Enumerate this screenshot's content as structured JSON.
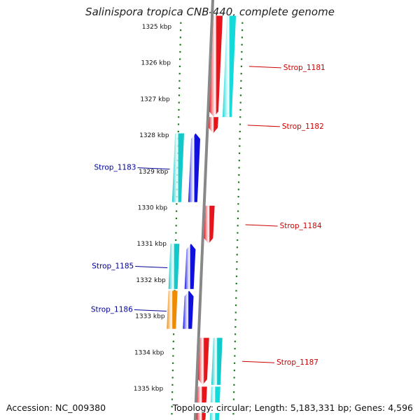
{
  "title": "Salinispora tropica CNB-440, complete genome",
  "accession_text": "Accession: NC_009380",
  "summary_text": "Topology: circular; Length: 5,183,331 bp; Genes: 4,596",
  "ticks": [
    {
      "kbp": 1325,
      "label": "1325 kbp"
    },
    {
      "kbp": 1326,
      "label": "1326 kbp"
    },
    {
      "kbp": 1327,
      "label": "1327 kbp"
    },
    {
      "kbp": 1328,
      "label": "1328 kbp"
    },
    {
      "kbp": 1329,
      "label": "1329 kbp"
    },
    {
      "kbp": 1330,
      "label": "1330 kbp"
    },
    {
      "kbp": 1331,
      "label": "1331 kbp"
    },
    {
      "kbp": 1332,
      "label": "1332 kbp"
    },
    {
      "kbp": 1333,
      "label": "1333 kbp"
    },
    {
      "kbp": 1334,
      "label": "1334 kbp"
    },
    {
      "kbp": 1335,
      "label": "1335 kbp"
    }
  ],
  "genes": [
    {
      "label": "Strop_1181",
      "strand": "reverse",
      "start_kbp": 1324.7,
      "end_kbp": 1327.5,
      "color": "#e8141c",
      "label_color": "#cc0000"
    },
    {
      "label": "Strop_1182",
      "strand": "reverse",
      "start_kbp": 1327.5,
      "end_kbp": 1327.95,
      "color": "#e8141c",
      "label_color": "#cc0000"
    },
    {
      "label": "Strop_1183",
      "strand": "forward",
      "start_kbp": 1327.95,
      "end_kbp": 1329.85,
      "color": "#1010dd",
      "label_color": "#000099"
    },
    {
      "label": "Strop_1184",
      "strand": "reverse",
      "start_kbp": 1329.95,
      "end_kbp": 1331.0,
      "color": "#e8141c",
      "label_color": "#cc0000"
    },
    {
      "label": "Strop_1185",
      "strand": "forward",
      "start_kbp": 1331.0,
      "end_kbp": 1332.25,
      "color": "#1010dd",
      "label_color": "#000099"
    },
    {
      "label": "Strop_1186",
      "strand": "forward",
      "start_kbp": 1332.3,
      "end_kbp": 1333.35,
      "color": "#1010dd",
      "label_color": "#000099"
    },
    {
      "label": "Strop_1187",
      "strand": "reverse",
      "start_kbp": 1333.6,
      "end_kbp": 1334.9,
      "color": "#e8141c",
      "label_color": "#cc0000"
    },
    {
      "label": "",
      "strand": "reverse",
      "start_kbp": 1334.95,
      "end_kbp": 1336.0,
      "color": "#e8141c",
      "label_color": "#cc0000"
    }
  ],
  "cds_features": [
    {
      "strand": "reverse",
      "start_kbp": 1324.7,
      "end_kbp": 1327.5,
      "color": "#12dada"
    },
    {
      "strand": "forward",
      "start_kbp": 1327.95,
      "end_kbp": 1329.85,
      "color": "#12c8c8"
    },
    {
      "strand": "forward",
      "start_kbp": 1331.0,
      "end_kbp": 1332.25,
      "color": "#12c8c8"
    },
    {
      "strand": "forward",
      "start_kbp": 1332.3,
      "end_kbp": 1333.35,
      "color": "#f08a00"
    },
    {
      "strand": "reverse",
      "start_kbp": 1333.6,
      "end_kbp": 1334.9,
      "color": "#12c8c8"
    },
    {
      "strand": "reverse",
      "start_kbp": 1334.95,
      "end_kbp": 1336.0,
      "color": "#12dada"
    }
  ],
  "colors": {
    "backbone": "#888888",
    "tick": "#1a7a1a",
    "forward_label": "#000099",
    "reverse_label": "#cc0000"
  }
}
